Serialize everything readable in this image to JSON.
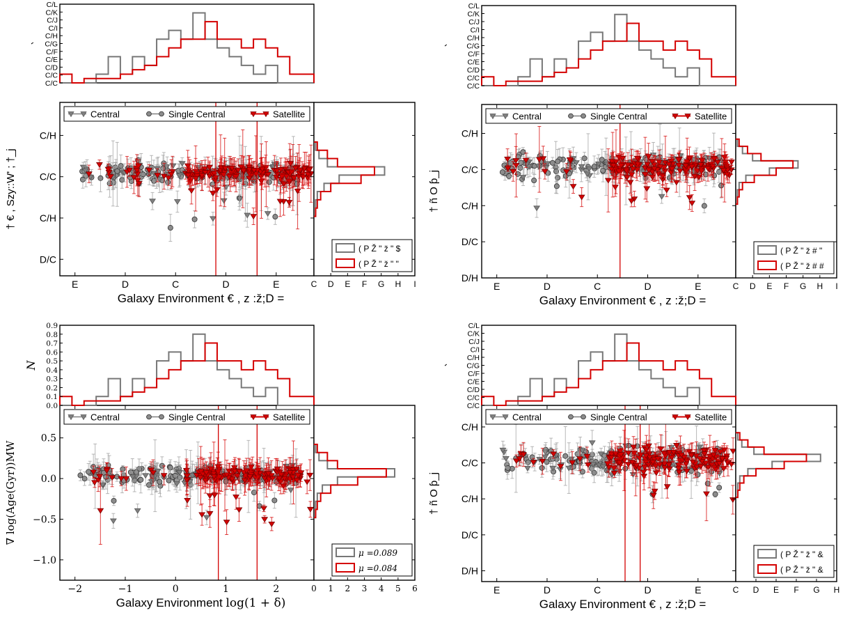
{
  "figure": {
    "colors": {
      "central": "#808080",
      "single_central": "#8c8c8c",
      "satellite": "#d40000",
      "frame": "#000000"
    },
    "legend_labels": [
      "Central",
      "Single Central",
      "Satellite"
    ],
    "panels_garbled_note": ""
  },
  "chart_data": [
    {
      "type": "scatter",
      "panel": "top-left",
      "xlabel": "Galaxy Environment",
      "xlabel_tail": "€ ,  z  :ž;D  =",
      "ylabel": "† € , Szy::W' ; †_j",
      "top_ylabel": "`",
      "x_ticks": [
        "E",
        "D",
        "C",
        "D",
        "E"
      ],
      "x_tick_values": [
        -2,
        -1,
        0,
        1,
        2
      ],
      "y_ticks": [
        "C/H",
        "C/C",
        "C/H",
        "D/C"
      ],
      "y_tick_values": [
        0.5,
        0.0,
        -0.5,
        -1.0
      ],
      "top_y_ticks": [
        "C/C",
        "C/C",
        "C/D",
        "C/E",
        "C/F",
        "C/G",
        "C/H",
        "C/I",
        "C/J",
        "C/K",
        "C/L"
      ],
      "side_x_ticks": [
        "C",
        "D",
        "E",
        "F",
        "G",
        "H",
        "I"
      ],
      "xlim": [
        -2.3,
        2.75
      ],
      "ylim": [
        -1.2,
        0.9
      ],
      "legend": [
        "Central",
        "Single Central",
        "Satellite"
      ],
      "hist_legend": [
        "( P Ž  \"   ž  \"  $",
        "( P Ž  \"   ž  \"   \""
      ],
      "series": [
        {
          "name": "Central",
          "marker": "triangle-down",
          "scatter": 0.11,
          "seed": 11
        },
        {
          "name": "Single Central",
          "marker": "circle",
          "scatter": 0.12,
          "seed": 23
        },
        {
          "name": "Satellite",
          "marker": "triangle-down",
          "scatter": 0.09,
          "seed": 37
        }
      ],
      "vlines": [
        0.8,
        1.62
      ],
      "hist_top_central": [
        0,
        0,
        0,
        0.1,
        0.3,
        0.1,
        0.3,
        0.2,
        0.5,
        0.6,
        0.5,
        0.8,
        0.5,
        0.4,
        0.3,
        0.2,
        0.1,
        0.2,
        0,
        0,
        0
      ],
      "hist_top_satellite": [
        0.1,
        0,
        0.05,
        0.05,
        0.05,
        0.1,
        0.15,
        0.2,
        0.3,
        0.4,
        0.5,
        0.5,
        0.7,
        0.5,
        0.5,
        0.4,
        0.5,
        0.4,
        0.3,
        0.1,
        0.1
      ],
      "hist_side_central": [
        0.1,
        0.3,
        0.8,
        4.2,
        1.5,
        0.6,
        0.2,
        0.1,
        0.1
      ],
      "hist_side_satellite": [
        0.2,
        0.8,
        1.4,
        3.6,
        2.8,
        1.0,
        0.4,
        0.2,
        0.1
      ]
    },
    {
      "type": "scatter",
      "panel": "top-right",
      "xlabel": "Galaxy Environment",
      "xlabel_tail": "€ ,  z  :ž;D  =",
      "ylabel": "† ñ  O ƥ_j",
      "top_ylabel": "`",
      "x_ticks": [
        "E",
        "D",
        "C",
        "D",
        "E"
      ],
      "x_tick_values": [
        -2,
        -1,
        0,
        1,
        2
      ],
      "y_ticks": [
        "C/H",
        "C/C",
        "C/H",
        "D/C",
        "D/H"
      ],
      "y_tick_values": [
        0.5,
        0.0,
        -0.5,
        -1.0,
        -1.5
      ],
      "top_y_ticks": [
        "C/C",
        "C/C",
        "C/D",
        "C/E",
        "C/F",
        "C/G",
        "C/H",
        "C/I",
        "C/J",
        "C/K",
        "C/L"
      ],
      "side_x_ticks": [
        "C",
        "D",
        "E",
        "F",
        "G",
        "H",
        "I"
      ],
      "xlim": [
        -2.3,
        2.75
      ],
      "ylim": [
        -1.5,
        0.9
      ],
      "legend": [
        "Central",
        "Single Central",
        "Satellite"
      ],
      "hist_legend": [
        "( P Ž  \"   ž  #  \"",
        "( P Ž  \"   ž  #  #"
      ],
      "series": [
        {
          "name": "Central",
          "marker": "triangle-down",
          "scatter": 0.14,
          "seed": 41
        },
        {
          "name": "Single Central",
          "marker": "circle",
          "scatter": 0.15,
          "seed": 53
        },
        {
          "name": "Satellite",
          "marker": "triangle-down",
          "scatter": 0.12,
          "seed": 67
        }
      ],
      "vlines": [
        0.45
      ],
      "hist_top_central": [
        0,
        0,
        0,
        0.1,
        0.3,
        0.1,
        0.3,
        0.2,
        0.5,
        0.6,
        0.5,
        0.8,
        0.5,
        0.4,
        0.3,
        0.2,
        0.1,
        0.2,
        0,
        0,
        0
      ],
      "hist_top_satellite": [
        0.1,
        0,
        0.05,
        0.05,
        0.05,
        0.1,
        0.15,
        0.2,
        0.3,
        0.4,
        0.5,
        0.5,
        0.7,
        0.5,
        0.5,
        0.4,
        0.5,
        0.4,
        0.3,
        0.1,
        0.1
      ],
      "hist_side_central": [
        0.1,
        0.4,
        1.0,
        3.7,
        2.0,
        0.6,
        0.2,
        0.1,
        0.1
      ],
      "hist_side_satellite": [
        0.2,
        0.7,
        1.5,
        3.4,
        2.4,
        1.1,
        0.4,
        0.2,
        0.1
      ]
    },
    {
      "type": "scatter",
      "panel": "bottom-left",
      "xlabel": "Galaxy Environment",
      "xlabel_tail": "log(1 + δ)",
      "ylabel": "∇ log(Age(Gyr))MW",
      "top_ylabel": "N",
      "x_ticks": [
        "−2",
        "−1",
        "0",
        "1",
        "2"
      ],
      "x_tick_values": [
        -2,
        -1,
        0,
        1,
        2
      ],
      "y_ticks": [
        "0.5",
        "0.0",
        "−0.5",
        "−1.0"
      ],
      "y_tick_values": [
        0.5,
        0.0,
        -0.5,
        -1.0
      ],
      "top_y_ticks": [
        "0.0",
        "0.1",
        "0.2",
        "0.3",
        "0.4",
        "0.5",
        "0.6",
        "0.7",
        "0.8",
        "0.9"
      ],
      "side_x_ticks": [
        "0",
        "1",
        "2",
        "3",
        "4",
        "5",
        "6"
      ],
      "xlim": [
        -2.3,
        2.75
      ],
      "ylim": [
        -1.25,
        0.9
      ],
      "legend": [
        "Central",
        "Single Central",
        "Satellite"
      ],
      "hist_legend": [
        "μ =0.089",
        "μ =0.084"
      ],
      "series": [
        {
          "name": "Central",
          "marker": "triangle-down",
          "scatter": 0.1,
          "seed": 71
        },
        {
          "name": "Single Central",
          "marker": "circle",
          "scatter": 0.11,
          "seed": 83
        },
        {
          "name": "Satellite",
          "marker": "triangle-down",
          "scatter": 0.08,
          "seed": 97
        }
      ],
      "vlines": [
        0.85,
        1.62
      ],
      "hist_top_central": [
        0,
        0,
        0,
        0.1,
        0.3,
        0.1,
        0.3,
        0.2,
        0.5,
        0.6,
        0.5,
        0.8,
        0.5,
        0.4,
        0.3,
        0.2,
        0.1,
        0.2,
        0,
        0,
        0
      ],
      "hist_top_satellite": [
        0.1,
        0,
        0.05,
        0.05,
        0.05,
        0.1,
        0.15,
        0.2,
        0.3,
        0.4,
        0.5,
        0.5,
        0.7,
        0.5,
        0.5,
        0.4,
        0.5,
        0.4,
        0.3,
        0.1,
        0.1
      ],
      "hist_side_central": [
        0.1,
        0.3,
        0.8,
        4.8,
        1.4,
        0.5,
        0.2,
        0.1,
        0.1
      ],
      "hist_side_satellite": [
        0.2,
        0.8,
        1.4,
        4.3,
        2.6,
        1.0,
        0.4,
        0.2,
        0.1
      ]
    },
    {
      "type": "scatter",
      "panel": "bottom-right",
      "xlabel": "Galaxy Environment",
      "xlabel_tail": "€ ,  z  :ž;D  =",
      "ylabel": "† ñ  O ƥ_j",
      "top_ylabel": "`",
      "x_ticks": [
        "E",
        "D",
        "C",
        "D",
        "E"
      ],
      "x_tick_values": [
        -2,
        -1,
        0,
        1,
        2
      ],
      "y_ticks": [
        "C/H",
        "C/C",
        "C/H",
        "D/C",
        "D/H"
      ],
      "y_tick_values": [
        0.5,
        0.0,
        -0.5,
        -1.0,
        -1.5
      ],
      "top_y_ticks": [
        "C/C",
        "C/C",
        "C/D",
        "C/E",
        "C/F",
        "C/G",
        "C/H",
        "C/I",
        "C/J",
        "C/K",
        "C/L"
      ],
      "side_x_ticks": [
        "C",
        "D",
        "E",
        "F",
        "G",
        "H"
      ],
      "xlim": [
        -2.3,
        2.75
      ],
      "ylim": [
        -1.65,
        0.8
      ],
      "legend": [
        "Central",
        "Single Central",
        "Satellite"
      ],
      "hist_legend": [
        "( P Ž  \"   ž  \"  &",
        "( P Ž  \"   ž  \"  &"
      ],
      "series": [
        {
          "name": "Central",
          "marker": "triangle-down",
          "scatter": 0.17,
          "seed": 103
        },
        {
          "name": "Single Central",
          "marker": "circle",
          "scatter": 0.18,
          "seed": 117
        },
        {
          "name": "Satellite",
          "marker": "triangle-down",
          "scatter": 0.15,
          "seed": 131
        }
      ],
      "vlines": [
        0.55,
        0.85
      ],
      "hist_top_central": [
        0,
        0,
        0,
        0.1,
        0.3,
        0.1,
        0.3,
        0.2,
        0.5,
        0.6,
        0.5,
        0.8,
        0.5,
        0.4,
        0.3,
        0.2,
        0.1,
        0.2,
        0,
        0,
        0
      ],
      "hist_top_satellite": [
        0.1,
        0,
        0.05,
        0.05,
        0.05,
        0.1,
        0.15,
        0.2,
        0.3,
        0.4,
        0.5,
        0.5,
        0.7,
        0.5,
        0.5,
        0.4,
        0.5,
        0.4,
        0.3,
        0.1,
        0.1
      ],
      "hist_side_central": [
        0.1,
        0.3,
        0.9,
        4.2,
        1.8,
        0.6,
        0.2,
        0.1,
        0.1
      ],
      "hist_side_satellite": [
        0.2,
        0.6,
        1.4,
        3.5,
        2.4,
        1.0,
        0.4,
        0.2,
        0.1
      ]
    }
  ]
}
